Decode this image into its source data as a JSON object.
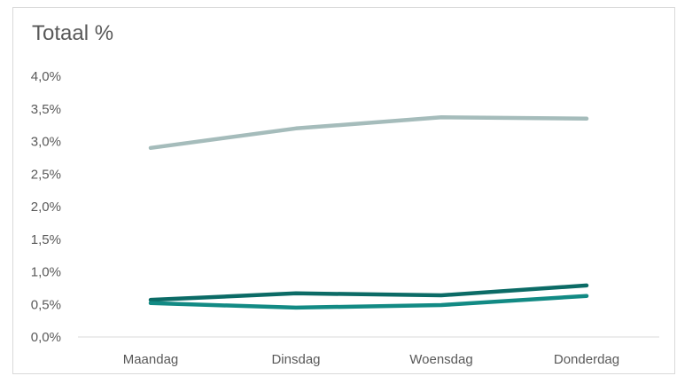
{
  "chart_data": {
    "type": "line",
    "title": "Totaal %",
    "categories": [
      "Maandag",
      "Dinsdag",
      "Woensdag",
      "Donderdag"
    ],
    "ylim": [
      0,
      4
    ],
    "ytick_labels": [
      "0,0%",
      "0,5%",
      "1,0%",
      "1,5%",
      "2,0%",
      "2,5%",
      "3,0%",
      "3,5%",
      "4,0%"
    ],
    "grid": false,
    "legend": "none",
    "series": [
      {
        "color": "#a5bcbb",
        "values": [
          2.9,
          3.2,
          3.37,
          3.35
        ]
      },
      {
        "color": "#0b6b66",
        "values": [
          0.57,
          0.67,
          0.64,
          0.79
        ]
      },
      {
        "color": "#128a84",
        "values": [
          0.52,
          0.45,
          0.49,
          0.63
        ]
      }
    ]
  }
}
